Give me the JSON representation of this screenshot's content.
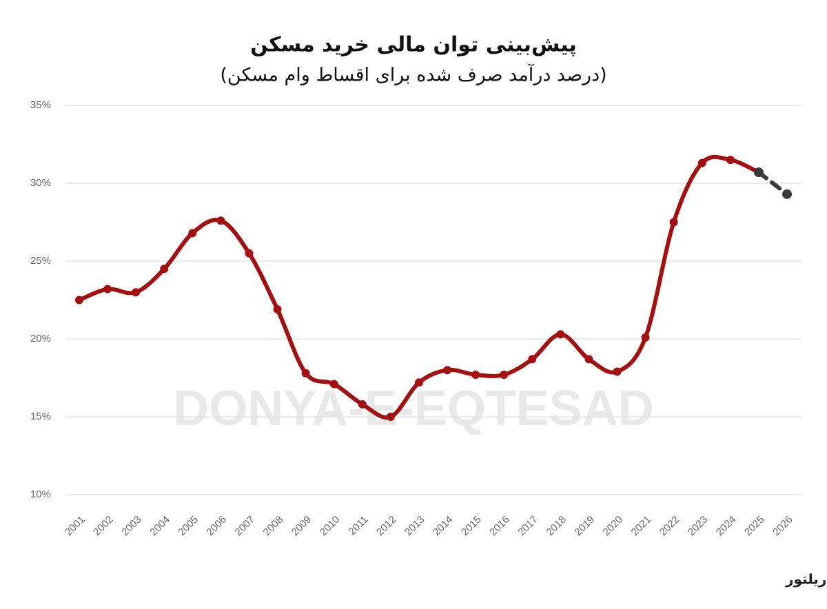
{
  "chart_data": {
    "type": "line",
    "title": "پیش‌بینی توان مالی خرید مسکن",
    "subtitle": "(درصد درآمد صرف شده برای اقساط وام مسکن)",
    "source": "منبع:ریلتور",
    "watermark": "DONYA-E-EQTESAD",
    "categories": [
      "2001",
      "2002",
      "2003",
      "2004",
      "2005",
      "2006",
      "2007",
      "2008",
      "2009",
      "2010",
      "2011",
      "2012",
      "2013",
      "2014",
      "2015",
      "2016",
      "2017",
      "2018",
      "2019",
      "2020",
      "2021",
      "2022",
      "2023",
      "2024",
      "2025",
      "2026"
    ],
    "series": [
      {
        "color": "#a3100f",
        "dashed": false,
        "values": [
          22.5,
          23.2,
          23.0,
          24.5,
          26.8,
          27.6,
          25.5,
          21.9,
          17.8,
          17.1,
          15.8,
          15.0,
          17.2,
          18.0,
          17.7,
          17.7,
          18.7,
          20.3,
          18.7,
          17.9,
          20.1,
          27.5,
          31.3,
          31.5,
          30.7,
          null
        ]
      },
      {
        "color": "#3a3a3a",
        "dashed": true,
        "values": [
          null,
          null,
          null,
          null,
          null,
          null,
          null,
          null,
          null,
          null,
          null,
          null,
          null,
          null,
          null,
          null,
          null,
          null,
          null,
          null,
          null,
          null,
          null,
          null,
          30.7,
          29.3
        ]
      }
    ],
    "ylim": [
      10,
      35
    ],
    "yticks": [
      {
        "value": 10,
        "label": "10%"
      },
      {
        "value": 15,
        "label": "15%"
      },
      {
        "value": 20,
        "label": "20%"
      },
      {
        "value": 25,
        "label": "25%"
      },
      {
        "value": 30,
        "label": "30%"
      },
      {
        "value": 35,
        "label": "35%"
      }
    ],
    "grid": true
  }
}
